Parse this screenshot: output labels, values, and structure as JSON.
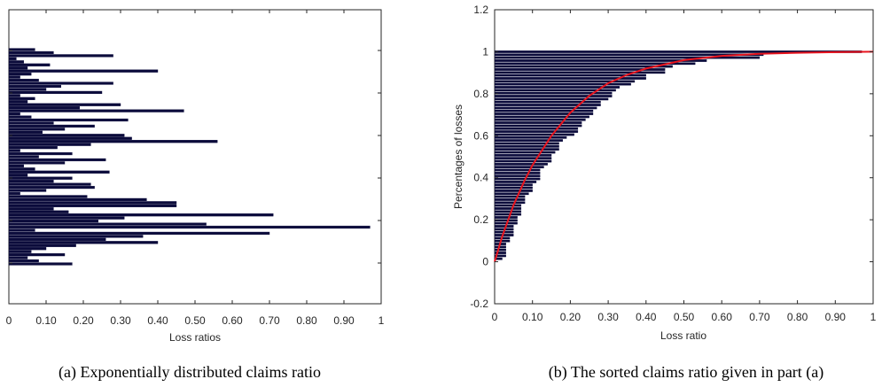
{
  "chart_data": [
    {
      "type": "bar",
      "orientation": "horizontal",
      "caption": "(a) Exponentially distributed claims ratio",
      "xlabel": "Loss ratios",
      "ylabel": "",
      "xlim": [
        0,
        1
      ],
      "xticks": [
        "0",
        "0.10",
        "0.20",
        "0.30",
        "0.40",
        "0.50",
        "0.60",
        "0.70",
        "0.80",
        "0.90",
        "1"
      ],
      "y_tick_labels_shown": false,
      "grid": false,
      "bar_color": "#0b0b3b",
      "values": [
        0.07,
        0.12,
        0.28,
        0.02,
        0.04,
        0.11,
        0.05,
        0.4,
        0.06,
        0.03,
        0.08,
        0.28,
        0.14,
        0.1,
        0.25,
        0.03,
        0.07,
        0.05,
        0.3,
        0.19,
        0.47,
        0.03,
        0.06,
        0.32,
        0.12,
        0.23,
        0.15,
        0.09,
        0.31,
        0.33,
        0.56,
        0.22,
        0.13,
        0.03,
        0.17,
        0.08,
        0.26,
        0.15,
        0.04,
        0.07,
        0.27,
        0.05,
        0.17,
        0.12,
        0.22,
        0.23,
        0.1,
        0.03,
        0.21,
        0.37,
        0.45,
        0.45,
        0.12,
        0.16,
        0.71,
        0.31,
        0.24,
        0.53,
        0.97,
        0.07,
        0.7,
        0.36,
        0.26,
        0.4,
        0.18,
        0.1,
        0.06,
        0.15,
        0.05,
        0.08,
        0.17
      ],
      "series": [
        {
          "values_ref": "values"
        }
      ]
    },
    {
      "type": "bar",
      "orientation": "horizontal",
      "caption": "(b) The sorted claims ratio given in part (a)",
      "xlabel": "Loss ratio",
      "ylabel": "Percentages of losses",
      "xlim": [
        0,
        1
      ],
      "ylim": [
        -0.2,
        1.2
      ],
      "xticks": [
        "0",
        "0.10",
        "0.20",
        "0.30",
        "0.40",
        "0.50",
        "0.60",
        "0.70",
        "0.80",
        "0.90",
        "1"
      ],
      "yticks": [
        "-0.2",
        "0",
        "0.2",
        "0.4",
        "0.6",
        "0.8",
        "1",
        "1.2"
      ],
      "grid": false,
      "bar_color": "#0b0b3b",
      "fit_color": "#e8141e",
      "sorted_bars_note_values": "bars at y = k/N, length = k-th smallest loss ratio",
      "fit_curve": {
        "type": "line",
        "label": "",
        "function_points_x": [
          0,
          0.02,
          0.05,
          0.08,
          0.1,
          0.15,
          0.2,
          0.25,
          0.3,
          0.35,
          0.4,
          0.5,
          0.6,
          0.7,
          0.8,
          0.9,
          1.0
        ],
        "function_points_y": [
          0,
          0.12,
          0.27,
          0.39,
          0.46,
          0.6,
          0.71,
          0.79,
          0.85,
          0.89,
          0.92,
          0.96,
          0.98,
          0.99,
          0.995,
          0.998,
          1.0
        ]
      }
    }
  ]
}
